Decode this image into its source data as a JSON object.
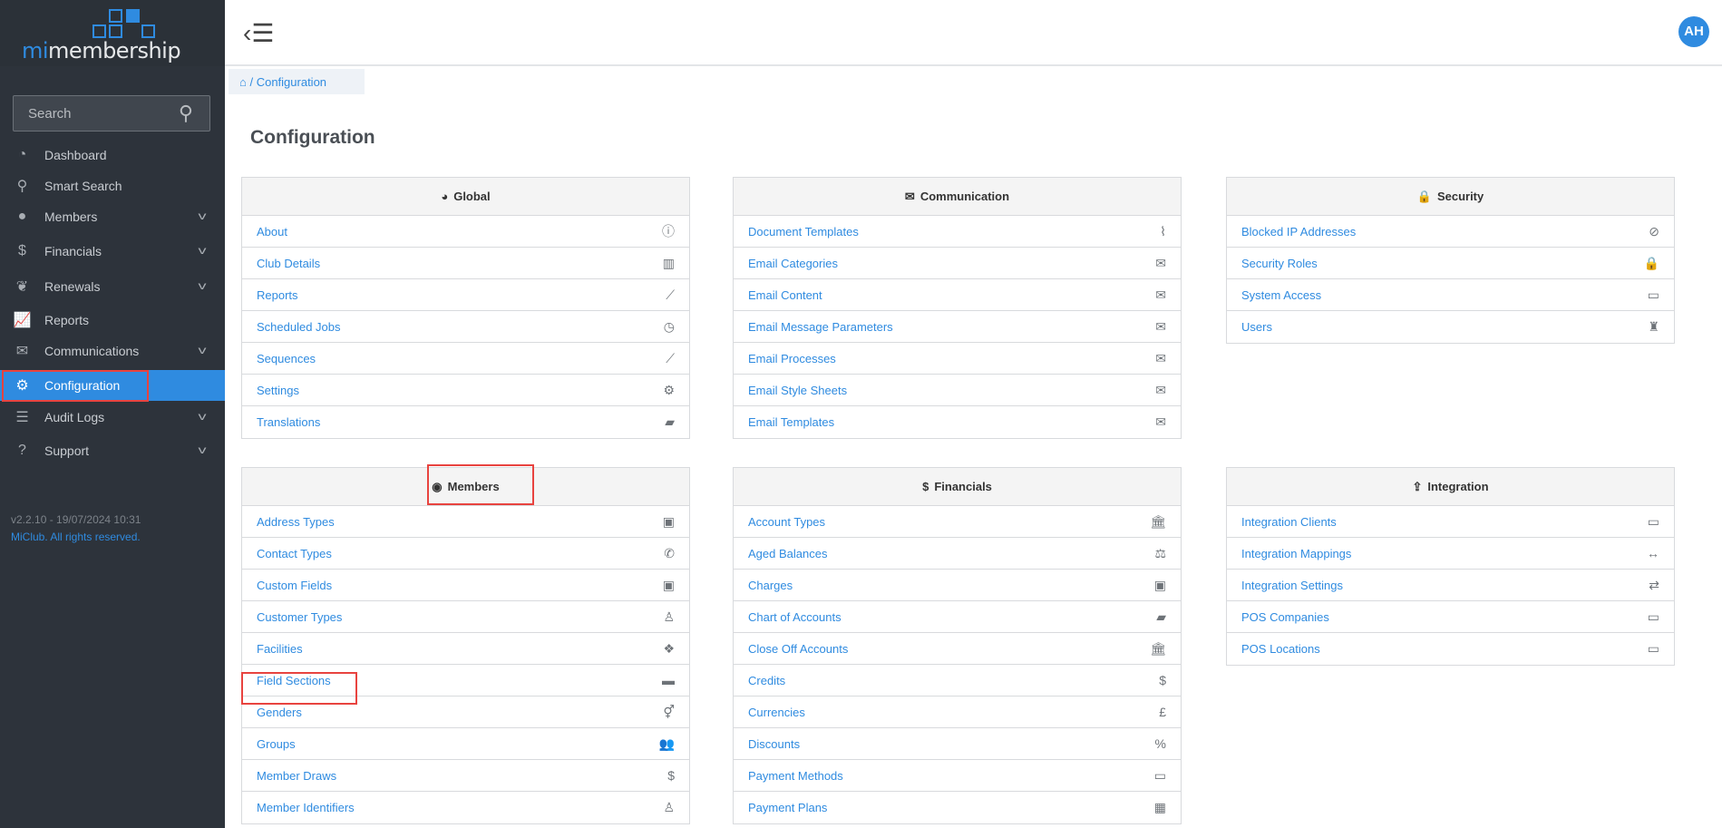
{
  "brand": {
    "prefix": "mi",
    "name": "membership"
  },
  "search": {
    "placeholder": "Search",
    "icon": "search-icon"
  },
  "nav": [
    {
      "label": "Dashboard",
      "icon": "dashboard-icon",
      "glyph": "◔",
      "chevron": false
    },
    {
      "label": "Smart Search",
      "icon": "search-icon",
      "glyph": "⚲",
      "chevron": false
    },
    {
      "label": "Members",
      "icon": "user-icon",
      "glyph": "●",
      "chevron": true
    },
    {
      "label": "Financials",
      "icon": "dollar-icon",
      "glyph": "$",
      "chevron": true
    },
    {
      "label": "Renewals",
      "icon": "leaf-icon",
      "glyph": "❦",
      "chevron": true
    },
    {
      "label": "Reports",
      "icon": "chart-icon",
      "glyph": "📈",
      "chevron": false
    },
    {
      "label": "Communications",
      "icon": "envelope-icon",
      "glyph": "✉",
      "chevron": true
    },
    {
      "label": "Configuration",
      "icon": "gear-icon",
      "glyph": "⚙",
      "chevron": false,
      "active": true
    },
    {
      "label": "Audit Logs",
      "icon": "list-icon",
      "glyph": "☰",
      "chevron": true
    },
    {
      "label": "Support",
      "icon": "question-icon",
      "glyph": "?",
      "chevron": true
    }
  ],
  "footer": {
    "version": "v2.2.10 - 19/07/2024 10:31",
    "copyright": "MiClub. All rights reserved."
  },
  "user": {
    "initials": "AH"
  },
  "breadcrumb": {
    "current": "Configuration"
  },
  "page_title": "Configuration",
  "accent": "#2f8be0",
  "panels": [
    {
      "title": "Global",
      "icon": "globe-icon",
      "glyph": "◕",
      "items": [
        [
          "About",
          "info-icon",
          "ⓘ"
        ],
        [
          "Club Details",
          "building-icon",
          "▥"
        ],
        [
          "Reports",
          "chart-icon",
          "⟋"
        ],
        [
          "Scheduled Jobs",
          "clock-icon",
          "◷"
        ],
        [
          "Sequences",
          "chart-icon",
          "⟋"
        ],
        [
          "Settings",
          "gear-icon",
          "⚙"
        ],
        [
          "Translations",
          "book-icon",
          "▰"
        ]
      ]
    },
    {
      "title": "Communication",
      "icon": "envelope-icon",
      "glyph": "✉",
      "items": [
        [
          "Document Templates",
          "paperclip-icon",
          "⌇"
        ],
        [
          "Email Categories",
          "envelope-icon",
          "✉"
        ],
        [
          "Email Content",
          "envelope-icon",
          "✉"
        ],
        [
          "Email Message Parameters",
          "envelope-icon",
          "✉"
        ],
        [
          "Email Processes",
          "envelope-icon",
          "✉"
        ],
        [
          "Email Style Sheets",
          "envelope-icon",
          "✉"
        ],
        [
          "Email Templates",
          "envelope-icon",
          "✉"
        ]
      ]
    },
    {
      "title": "Security",
      "icon": "lock-icon",
      "glyph": "🔒",
      "items": [
        [
          "Blocked IP Addresses",
          "ban-icon",
          "⊘"
        ],
        [
          "Security Roles",
          "lock-icon",
          "🔒"
        ],
        [
          "System Access",
          "desktop-icon",
          "▭"
        ],
        [
          "Users",
          "user-secret-icon",
          "♜"
        ]
      ]
    },
    {
      "title": "Members",
      "icon": "user-circle-icon",
      "glyph": "◉",
      "items": [
        [
          "Address Types",
          "id-card-icon",
          "▣"
        ],
        [
          "Contact Types",
          "phone-icon",
          "✆"
        ],
        [
          "Custom Fields",
          "id-card-icon",
          "▣"
        ],
        [
          "Customer Types",
          "user-icon",
          "♙"
        ],
        [
          "Facilities",
          "cubes-icon",
          "❖"
        ],
        [
          "Field Sections",
          "folder-icon",
          "▬"
        ],
        [
          "Genders",
          "genders-icon",
          "⚥"
        ],
        [
          "Groups",
          "users-icon",
          "👥"
        ],
        [
          "Member Draws",
          "dollar-icon",
          "$"
        ],
        [
          "Member Identifiers",
          "user-icon",
          "♙"
        ]
      ]
    },
    {
      "title": "Financials",
      "icon": "dollar-icon",
      "glyph": "$",
      "items": [
        [
          "Account Types",
          "bank-icon",
          "🏛"
        ],
        [
          "Aged Balances",
          "balance-scale-icon",
          "⚖"
        ],
        [
          "Charges",
          "money-icon",
          "▣"
        ],
        [
          "Chart of Accounts",
          "book-icon",
          "▰"
        ],
        [
          "Close Off Accounts",
          "bank-icon",
          "🏛"
        ],
        [
          "Credits",
          "dollar-icon",
          "$"
        ],
        [
          "Currencies",
          "pound-icon",
          "£"
        ],
        [
          "Discounts",
          "percent-icon",
          "%"
        ],
        [
          "Payment Methods",
          "credit-card-icon",
          "▭"
        ],
        [
          "Payment Plans",
          "calendar-icon",
          "▦"
        ]
      ]
    },
    {
      "title": "Integration",
      "icon": "upload-icon",
      "glyph": "⇪",
      "items": [
        [
          "Integration Clients",
          "desktop-icon",
          "▭"
        ],
        [
          "Integration Mappings",
          "arrows-h-icon",
          "↔"
        ],
        [
          "Integration Settings",
          "retweet-icon",
          "⇄"
        ],
        [
          "POS Companies",
          "desktop-icon",
          "▭"
        ],
        [
          "POS Locations",
          "desktop-icon",
          "▭"
        ]
      ]
    }
  ]
}
